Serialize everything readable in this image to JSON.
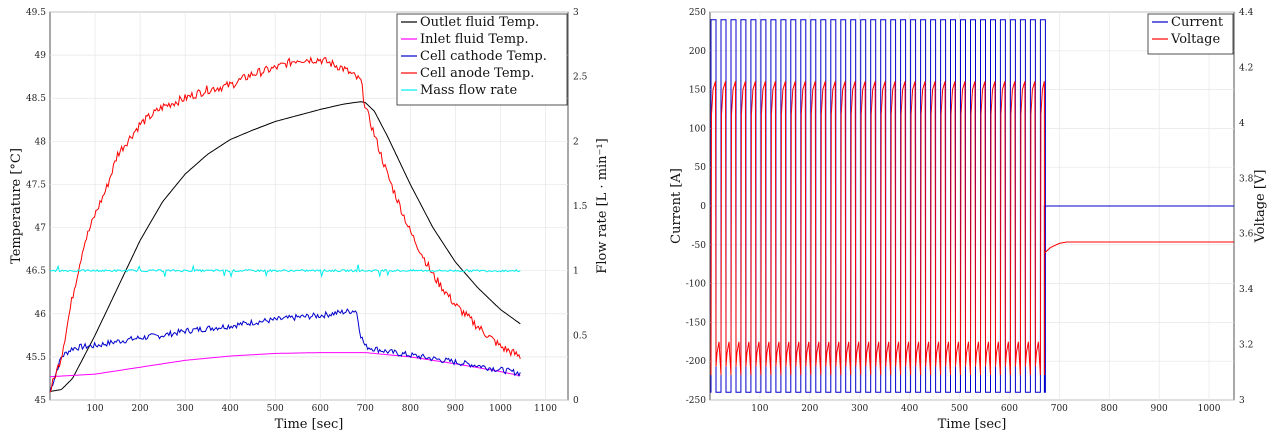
{
  "chart_data": [
    {
      "type": "line",
      "xlabel": "Time [sec]",
      "ylabel": "Temperature [°C]",
      "y2label": "Flow rate [L · min⁻¹]",
      "xlim": [
        0,
        1150
      ],
      "ylim": [
        45,
        49.5
      ],
      "y2lim": [
        0,
        3
      ],
      "xticks": [
        "100",
        "200",
        "300",
        "400",
        "500",
        "600",
        "700",
        "800",
        "900",
        "1000",
        "1100"
      ],
      "yticks": [
        "45",
        "45.5",
        "46",
        "46.5",
        "47",
        "47.5",
        "48",
        "48.5",
        "49",
        "49.5"
      ],
      "y2ticks": [
        "0",
        "0.5",
        "1",
        "1.5",
        "2",
        "2.5",
        "3"
      ],
      "grid": true,
      "legend_position": "top-right",
      "series": [
        {
          "name": "Outlet fluid Temp.",
          "color": "#000000",
          "axis": "left",
          "x": [
            0,
            25,
            50,
            75,
            100,
            150,
            200,
            250,
            300,
            350,
            400,
            450,
            500,
            550,
            600,
            650,
            690,
            700,
            720,
            750,
            800,
            850,
            900,
            950,
            1000,
            1045
          ],
          "y": [
            45.1,
            45.12,
            45.25,
            45.5,
            45.75,
            46.3,
            46.85,
            47.3,
            47.62,
            47.85,
            48.02,
            48.13,
            48.23,
            48.3,
            48.37,
            48.43,
            48.46,
            48.45,
            48.35,
            48.05,
            47.5,
            47.0,
            46.6,
            46.3,
            46.05,
            45.88
          ]
        },
        {
          "name": "Inlet fluid Temp.",
          "color": "#ff00ff",
          "axis": "left",
          "x": [
            0,
            100,
            200,
            300,
            400,
            500,
            600,
            700,
            800,
            900,
            1000,
            1045
          ],
          "y": [
            45.27,
            45.3,
            45.38,
            45.46,
            45.51,
            45.54,
            45.55,
            45.55,
            45.5,
            45.42,
            45.33,
            45.28
          ]
        },
        {
          "name": "Cell cathode Temp.",
          "color": "#0000cc",
          "axis": "left",
          "x": [
            0,
            25,
            50,
            75,
            100,
            150,
            200,
            250,
            300,
            350,
            400,
            450,
            500,
            550,
            600,
            650,
            680,
            690,
            700,
            750,
            800,
            850,
            900,
            950,
            1000,
            1045
          ],
          "y": [
            45.1,
            45.5,
            45.6,
            45.62,
            45.63,
            45.68,
            45.72,
            45.75,
            45.8,
            45.83,
            45.86,
            45.9,
            45.93,
            45.96,
            45.98,
            46.02,
            46.04,
            45.75,
            45.62,
            45.56,
            45.52,
            45.48,
            45.44,
            45.4,
            45.35,
            45.31
          ]
        },
        {
          "name": "Cell anode Temp.",
          "color": "#ff0000",
          "axis": "left",
          "x": [
            0,
            25,
            50,
            75,
            100,
            125,
            150,
            200,
            250,
            300,
            350,
            400,
            450,
            500,
            550,
            600,
            650,
            690,
            700,
            725,
            750,
            800,
            850,
            900,
            950,
            1000,
            1045
          ],
          "y": [
            45.1,
            45.5,
            46.2,
            46.8,
            47.15,
            47.45,
            47.85,
            48.2,
            48.4,
            48.5,
            48.6,
            48.65,
            48.78,
            48.85,
            48.95,
            48.95,
            48.85,
            48.7,
            48.4,
            48.0,
            47.6,
            46.95,
            46.45,
            46.1,
            45.85,
            45.62,
            45.5
          ]
        },
        {
          "name": "Mass flow rate",
          "color": "#00eeee",
          "axis": "right",
          "x": [
            0,
            100,
            200,
            300,
            400,
            500,
            600,
            700,
            800,
            900,
            1000,
            1045
          ],
          "y": [
            1.0,
            1.0,
            1.0,
            1.0,
            1.0,
            1.0,
            1.0,
            1.0,
            1.0,
            1.0,
            1.0,
            1.0
          ]
        }
      ]
    },
    {
      "type": "line",
      "xlabel": "Time [sec]",
      "ylabel": "Current [A]",
      "y2label": "Voltage [V]",
      "xlim": [
        0,
        1050
      ],
      "ylim": [
        -250,
        250
      ],
      "y2lim": [
        3,
        4.4
      ],
      "xticks": [
        "100",
        "200",
        "300",
        "400",
        "500",
        "600",
        "700",
        "800",
        "900",
        "1000"
      ],
      "yticks": [
        "-250",
        "-200",
        "-150",
        "-100",
        "-50",
        "0",
        "50",
        "100",
        "150",
        "200",
        "250"
      ],
      "y2ticks": [
        "3",
        "3.2",
        "3.4",
        "3.6",
        "3.8",
        "4",
        "4.2",
        "4.4"
      ],
      "grid": true,
      "legend_position": "top-right",
      "pulse_period_sec": 20,
      "pulse_end_sec": 670,
      "series": [
        {
          "name": "Current",
          "color": "#0000cc",
          "axis": "left",
          "description_values": {
            "high": 240,
            "low": -240,
            "after_end": 0
          }
        },
        {
          "name": "Voltage",
          "color": "#ff0000",
          "axis": "right",
          "description_values": {
            "peak": 4.15,
            "trough": 3.07,
            "after_end_start": 3.53,
            "after_end_settle": 3.57
          }
        }
      ]
    }
  ]
}
